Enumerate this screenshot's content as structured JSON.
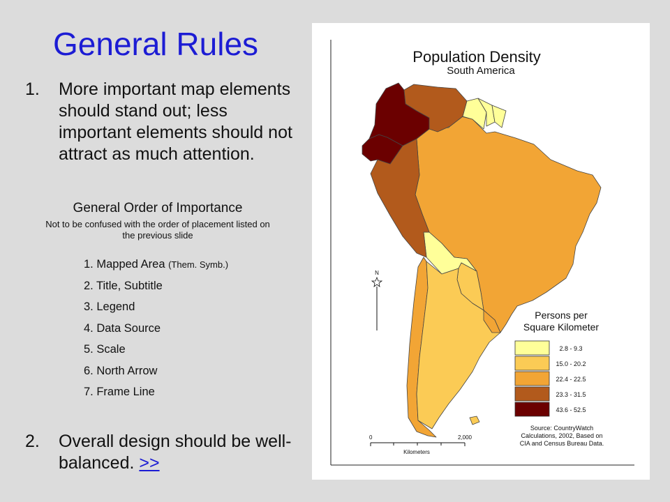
{
  "slide": {
    "title": "General Rules",
    "point1": {
      "number": "1.",
      "text": "More important map elements should stand out; less important elements should not attract as much attention."
    },
    "order_heading": "General Order of Importance",
    "order_subheading": "Not to be confused with the order of placement listed on the previous slide",
    "order_items": [
      {
        "label": "1.  Mapped Area",
        "note": "(Them. Symb.)"
      },
      {
        "label": "2.  Title, Subtitle"
      },
      {
        "label": "3.  Legend"
      },
      {
        "label": "4.  Data Source"
      },
      {
        "label": "5.  Scale"
      },
      {
        "label": "6.  North Arrow"
      },
      {
        "label": "7.  Frame Line"
      }
    ],
    "point2": {
      "number": "2.",
      "text": "Overall design should be well-balanced.",
      "link": ">>"
    }
  },
  "map": {
    "title": "Population Density",
    "subtitle": "South America",
    "north_label": "N",
    "legend": {
      "title_line1": "Persons per",
      "title_line2": "Square Kilometer",
      "classes": [
        {
          "label": "2.8 - 9.3",
          "color": "#ffff99"
        },
        {
          "label": "15.0 - 20.2",
          "color": "#fbcb55"
        },
        {
          "label": "22.4 - 22.5",
          "color": "#f2a535"
        },
        {
          "label": "23.3 - 31.5",
          "color": "#b25a1c"
        },
        {
          "label": "43.6 - 52.5",
          "color": "#6b0000"
        }
      ]
    },
    "source": {
      "line1": "Source: CountryWatch",
      "line2": "Calculations, 2002, Based on",
      "line3": "CIA and Census Bureau Data."
    },
    "scale": {
      "start": "0",
      "end": "2,000",
      "unit": "Kilometers"
    }
  }
}
